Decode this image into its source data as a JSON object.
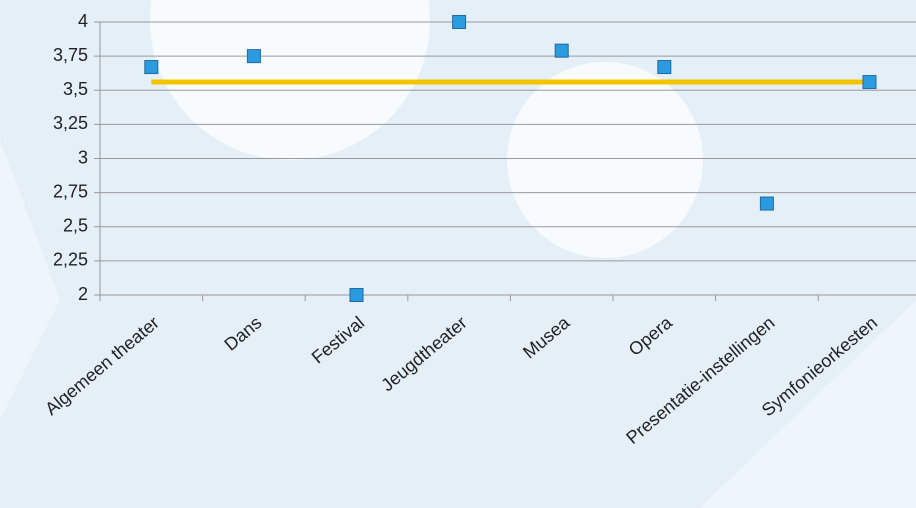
{
  "chart_data": {
    "type": "line",
    "categories": [
      "Algemeen theater",
      "Dans",
      "Festival",
      "Jeugdtheater",
      "Musea",
      "Opera",
      "Presentatie-instellingen",
      "Symfonieorkesten"
    ],
    "series": [
      {
        "color": "#2b9be0",
        "marker": "square",
        "line": false,
        "values": [
          3.67,
          3.75,
          2.0,
          4.0,
          3.79,
          3.67,
          2.67,
          3.56
        ]
      },
      {
        "color": "#f5c400",
        "marker": "none",
        "line": true,
        "values": [
          3.56,
          3.56,
          3.56,
          3.56,
          3.56,
          3.56,
          3.56,
          3.56
        ]
      }
    ],
    "ylim": [
      2,
      4
    ],
    "yticks": [
      2,
      {
        "value": 2.25,
        "label": "2,25"
      },
      {
        "value": 2.5,
        "label": "2,5"
      },
      {
        "value": 2.75,
        "label": "2,75"
      },
      3,
      {
        "value": 3.25,
        "label": "3,25"
      },
      {
        "value": 3.5,
        "label": "3,5"
      },
      {
        "value": 3.75,
        "label": "3,75"
      },
      4
    ],
    "grid": true
  }
}
